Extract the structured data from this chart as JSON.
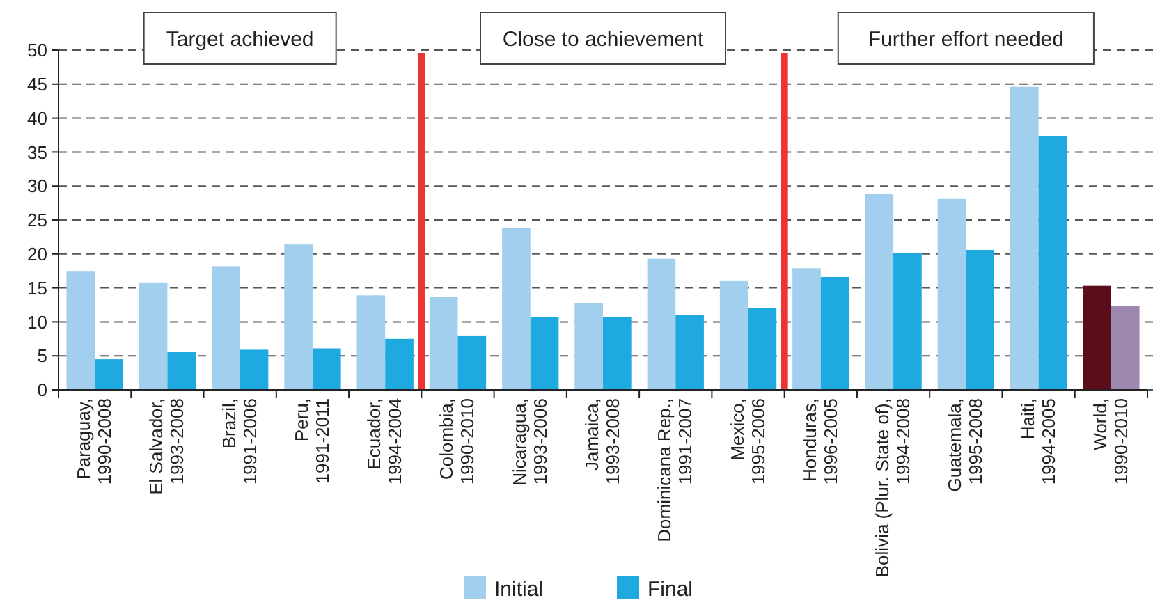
{
  "chart_data": {
    "type": "bar",
    "categories": [
      "Paraguay, 1990-2008",
      "El Salvador, 1993-2008",
      "Brazil, 1991-2006",
      "Peru, 1991-2011",
      "Ecuador, 1994-2004",
      "Colombia, 1990-2010",
      "Nicaragua, 1993-2006",
      "Jamaica, 1993-2008",
      "Dominicana Rep., 1991-2007",
      "Mexico, 1995-2006",
      "Honduras, 1996-2005",
      "Bolivia (Plur. State of), 1994-2008",
      "Guatemala, 1995-2008",
      "Haiti, 1994-2005",
      "World, 1990-2010"
    ],
    "series": [
      {
        "name": "Initial",
        "color": "#a3cfee",
        "colors": [
          "#a3cfee",
          "#a3cfee",
          "#a3cfee",
          "#a3cfee",
          "#a3cfee",
          "#a3cfee",
          "#a3cfee",
          "#a3cfee",
          "#a3cfee",
          "#a3cfee",
          "#a3cfee",
          "#a3cfee",
          "#a3cfee",
          "#a3cfee",
          "#5c0d1a"
        ],
        "values": [
          17.4,
          15.8,
          18.2,
          21.4,
          13.9,
          13.7,
          23.8,
          12.8,
          19.3,
          16.1,
          17.9,
          28.9,
          28.1,
          44.6,
          15.3
        ]
      },
      {
        "name": "Final",
        "color": "#1eaae0",
        "colors": [
          "#1eaae0",
          "#1eaae0",
          "#1eaae0",
          "#1eaae0",
          "#1eaae0",
          "#1eaae0",
          "#1eaae0",
          "#1eaae0",
          "#1eaae0",
          "#1eaae0",
          "#1eaae0",
          "#1eaae0",
          "#1eaae0",
          "#1eaae0",
          "#9e88b0"
        ],
        "values": [
          4.5,
          5.6,
          5.9,
          6.1,
          7.5,
          8.0,
          10.7,
          10.7,
          11.0,
          12.0,
          16.6,
          20.1,
          20.6,
          37.3,
          12.4
        ]
      }
    ],
    "ylim": [
      0,
      50
    ],
    "yticks": [
      0,
      5,
      10,
      15,
      20,
      25,
      30,
      35,
      40,
      45,
      50
    ],
    "grid": "y",
    "legend": "bottom",
    "annotations": [
      "Target achieved",
      "Close to achievement",
      "Further effort needed"
    ]
  }
}
